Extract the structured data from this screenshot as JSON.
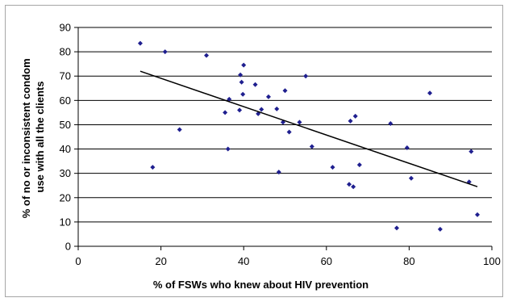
{
  "chart_data": {
    "type": "scatter",
    "title": "",
    "xlabel": "% of FSWs who knew about HIV prevention",
    "ylabel_lines": [
      "% of no or inconsistent condom",
      "use with all the clients"
    ],
    "xlim": [
      0,
      100
    ],
    "ylim": [
      0,
      90
    ],
    "x_ticks": [
      0,
      20,
      40,
      60,
      80,
      100
    ],
    "y_ticks": [
      0,
      10,
      20,
      30,
      40,
      50,
      60,
      70,
      80,
      90
    ],
    "grid": {
      "horizontal": true,
      "vertical": false
    },
    "legend": "none",
    "marker_color": "#1f1f8f",
    "trendline": {
      "type": "linear",
      "from": [
        15,
        72
      ],
      "to": [
        96.5,
        24.5
      ],
      "color": "#000000"
    },
    "series": [
      {
        "points": [
          [
            15,
            83.5
          ],
          [
            18,
            32.5
          ],
          [
            21,
            80
          ],
          [
            24.5,
            48
          ],
          [
            31,
            78.5
          ],
          [
            35.5,
            55
          ],
          [
            36.2,
            40
          ],
          [
            36.5,
            60.5
          ],
          [
            39,
            56
          ],
          [
            39.2,
            70.5
          ],
          [
            39.5,
            67.5
          ],
          [
            39.8,
            62.5
          ],
          [
            40,
            74.5
          ],
          [
            42.8,
            66.5
          ],
          [
            43.5,
            54.5
          ],
          [
            44.3,
            56.3
          ],
          [
            46,
            61.5
          ],
          [
            48,
            56.5
          ],
          [
            48.5,
            30.5
          ],
          [
            49.5,
            51
          ],
          [
            50,
            64
          ],
          [
            51,
            47
          ],
          [
            53.5,
            51
          ],
          [
            55,
            70
          ],
          [
            56.5,
            41
          ],
          [
            61.5,
            32.5
          ],
          [
            65.5,
            25.5
          ],
          [
            65.8,
            51.5
          ],
          [
            66.5,
            24.5
          ],
          [
            67,
            53.5
          ],
          [
            68,
            33.5
          ],
          [
            75.5,
            50.5
          ],
          [
            77,
            7.5
          ],
          [
            79.5,
            40.5
          ],
          [
            80.5,
            28
          ],
          [
            85,
            63
          ],
          [
            87.5,
            7
          ],
          [
            94.5,
            26.5
          ],
          [
            95,
            39
          ],
          [
            96.5,
            13
          ]
        ]
      }
    ]
  }
}
